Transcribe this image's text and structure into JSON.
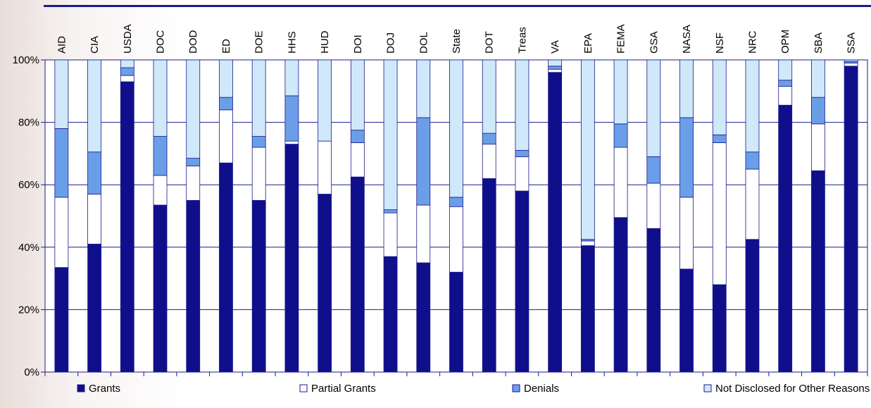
{
  "chart_data": {
    "type": "bar",
    "stacked": true,
    "percent_stacked": true,
    "categories": [
      "AID",
      "CIA",
      "USDA",
      "DOC",
      "DOD",
      "ED",
      "DOE",
      "HHS",
      "HUD",
      "DOI",
      "DOJ",
      "DOL",
      "State",
      "DOT",
      "Treas",
      "VA",
      "EPA",
      "FEMA",
      "GSA",
      "NASA",
      "NSF",
      "NRC",
      "OPM",
      "SBA",
      "SSA"
    ],
    "series": [
      {
        "name": "Grants",
        "color": "#0f0f8c",
        "values": [
          33.5,
          41,
          93,
          53.5,
          55,
          67,
          55,
          73,
          57,
          62.5,
          37,
          35,
          32,
          62,
          58,
          96,
          40.5,
          49.5,
          46,
          33,
          28,
          42.5,
          85.5,
          64.5,
          98
        ]
      },
      {
        "name": "Partial Grants",
        "color": "#ffffff",
        "values": [
          22.5,
          16,
          2,
          9.5,
          11,
          17,
          17,
          1,
          17,
          11,
          14,
          18.5,
          21,
          11,
          11,
          1,
          1.5,
          22.5,
          14.5,
          23,
          45.5,
          22.5,
          6,
          15,
          1
        ]
      },
      {
        "name": "Denials",
        "color": "#6b9ee8",
        "values": [
          22,
          13.5,
          2.5,
          12.5,
          2.5,
          4,
          3.5,
          14.5,
          0,
          4,
          1,
          28,
          3,
          3.5,
          2,
          1,
          0.5,
          7.5,
          8.5,
          25.5,
          2.5,
          5.5,
          2,
          8.5,
          0.5
        ]
      },
      {
        "name": "Not Disclosed for Other Reasons",
        "color": "#cfe8fa",
        "values": [
          22,
          29.5,
          2.5,
          24.5,
          31.5,
          12,
          24.5,
          11.5,
          26,
          22.5,
          48,
          18.5,
          44,
          23.5,
          29,
          2,
          57.5,
          20.5,
          31,
          18.5,
          24,
          29.5,
          6.5,
          12,
          0.5
        ]
      }
    ],
    "ylim": [
      0,
      100
    ],
    "yticks": [
      "0%",
      "20%",
      "40%",
      "60%",
      "80%",
      "100%"
    ],
    "legend_position": "bottom",
    "grid": true
  }
}
